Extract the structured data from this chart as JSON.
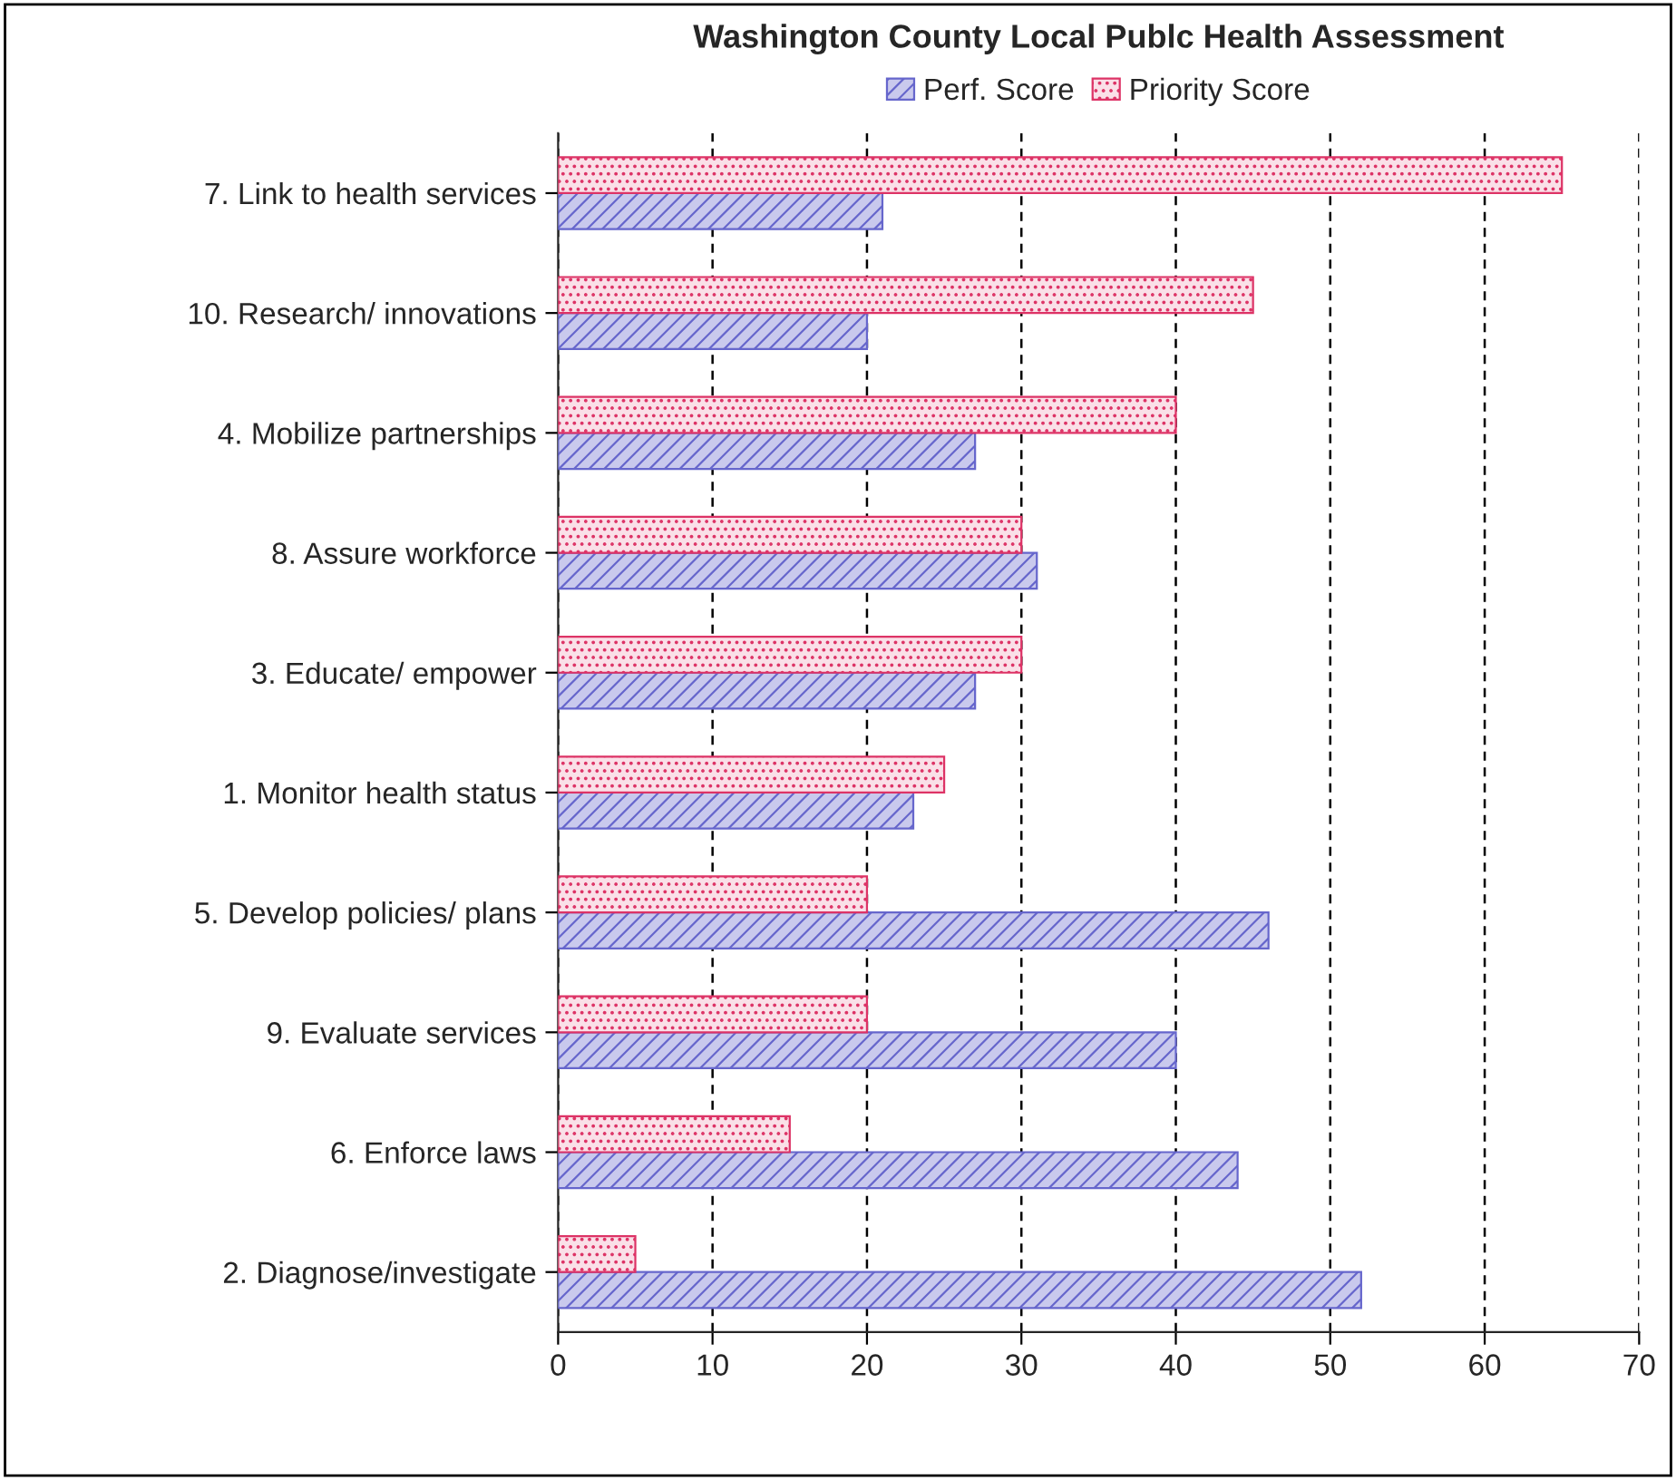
{
  "chart_data": {
    "type": "bar",
    "orientation": "horizontal",
    "title": "Washington County Local Publc Health Assessment",
    "categories": [
      "7. Link to health services",
      "10. Research/ innovations",
      "4. Mobilize partnerships",
      "8. Assure workforce",
      "3. Educate/ empower",
      "1. Monitor health status",
      "5. Develop policies/ plans",
      "9. Evaluate services",
      "6. Enforce laws",
      "2. Diagnose/investigate"
    ],
    "series": [
      {
        "name": "Perf. Score",
        "color": "#6666cc",
        "values": [
          21,
          20,
          27,
          31,
          27,
          23,
          46,
          40,
          44,
          52
        ]
      },
      {
        "name": "Priority Score",
        "color": "#dd3366",
        "values": [
          65,
          45,
          40,
          30,
          30,
          25,
          20,
          20,
          15,
          5
        ]
      }
    ],
    "xlim": [
      0,
      70
    ],
    "xticks": [
      0,
      10,
      20,
      30,
      40,
      50,
      60,
      70
    ],
    "grid": "x",
    "legend": "top"
  }
}
